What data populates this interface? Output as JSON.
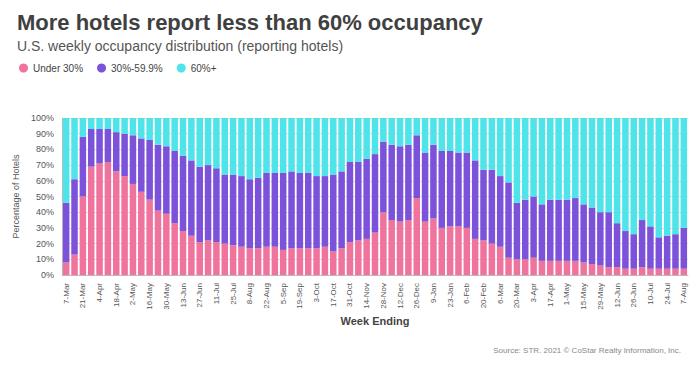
{
  "chart_data": {
    "type": "bar",
    "title": "More hotels report less than 60% occupancy",
    "subtitle": "U.S. weekly occupancy distribution (reporting hotels)",
    "x_label": "Week Ending",
    "y_label": "Percentage of Hotels",
    "annotations": [
      "Source: STR. 2021 © CoStar Realty Information, Inc."
    ],
    "categories": [
      "7-Mar",
      null,
      "21-Mar",
      null,
      "4-Apr",
      null,
      "18-Apr",
      null,
      "2-May",
      null,
      "16-May",
      null,
      "30-May",
      null,
      "13-Jun",
      null,
      "27-Jun",
      null,
      "11-Jul",
      null,
      "25-Jul",
      null,
      "8-Aug",
      null,
      "22-Aug",
      null,
      "5-Sep",
      null,
      "19-Sep",
      null,
      "3-Oct",
      null,
      "17-Oct",
      null,
      "31-Oct",
      null,
      "14-Nov",
      null,
      "28-Nov",
      null,
      "12-Dec",
      null,
      "26-Dec",
      null,
      "9-Jan",
      null,
      "23-Jan",
      null,
      "6-Feb",
      null,
      "20-Feb",
      null,
      "6-Mar",
      null,
      "20-Mar",
      null,
      "3-Apr",
      null,
      "17-Apr",
      null,
      "1-May",
      null,
      "15-May",
      null,
      "29-May",
      null,
      "12-Jun",
      null,
      "26-Jun",
      null,
      "10-Jul",
      null,
      "24-Jul",
      null,
      "7-Aug"
    ],
    "series": [
      {
        "name": "Under 30%",
        "color": "#f0739e",
        "values": [
          8,
          13,
          50,
          69,
          71,
          72,
          66,
          63,
          58,
          53,
          48,
          41,
          39,
          33,
          28,
          25,
          21,
          22,
          21,
          20,
          19,
          18,
          17,
          17,
          18,
          18,
          16,
          17,
          17,
          17,
          17,
          18,
          15,
          17,
          21,
          22,
          23,
          27,
          40,
          35,
          34,
          35,
          49,
          34,
          36,
          30,
          31,
          31,
          30,
          23,
          22,
          20,
          18,
          11,
          10,
          10,
          11,
          9,
          9,
          9,
          9,
          9,
          8,
          7,
          6,
          5,
          5,
          4,
          4,
          5,
          4,
          4,
          4,
          4,
          4
        ]
      },
      {
        "name": "30%-59.9%",
        "color": "#7b52d9",
        "values": [
          38,
          48,
          38,
          24,
          22,
          21,
          25,
          27,
          31,
          34,
          38,
          42,
          43,
          46,
          48,
          48,
          48,
          48,
          47,
          44,
          45,
          45,
          44,
          45,
          47,
          47,
          49,
          49,
          48,
          48,
          46,
          45,
          49,
          49,
          51,
          50,
          51,
          50,
          45,
          48,
          48,
          48,
          40,
          44,
          47,
          49,
          48,
          47,
          48,
          50,
          45,
          47,
          45,
          48,
          36,
          38,
          39,
          36,
          39,
          39,
          39,
          40,
          37,
          36,
          34,
          35,
          28,
          24,
          22,
          30,
          27,
          20,
          21,
          22,
          26
        ]
      },
      {
        "name": "60%+",
        "color": "#4fe3ea",
        "values": [
          54,
          39,
          12,
          7,
          7,
          7,
          9,
          10,
          11,
          13,
          14,
          17,
          18,
          21,
          24,
          27,
          31,
          30,
          32,
          36,
          36,
          37,
          39,
          38,
          35,
          35,
          35,
          34,
          35,
          35,
          37,
          37,
          36,
          34,
          28,
          28,
          26,
          23,
          15,
          17,
          18,
          17,
          11,
          22,
          17,
          21,
          21,
          22,
          22,
          27,
          33,
          33,
          37,
          41,
          54,
          52,
          50,
          55,
          52,
          52,
          52,
          51,
          55,
          57,
          60,
          60,
          67,
          72,
          74,
          65,
          69,
          76,
          75,
          74,
          70
        ]
      }
    ],
    "ylim": [
      0,
      100
    ],
    "yticks": [
      {
        "value": 0,
        "label": "0%"
      },
      {
        "value": 10,
        "label": "10%"
      },
      {
        "value": 20,
        "label": "20%"
      },
      {
        "value": 30,
        "label": "30%"
      },
      {
        "value": 40,
        "label": "40%"
      },
      {
        "value": 50,
        "label": "50%"
      },
      {
        "value": 60,
        "label": "60%"
      },
      {
        "value": 70,
        "label": "70%"
      },
      {
        "value": 80,
        "label": "80%"
      },
      {
        "value": 90,
        "label": "90%"
      },
      {
        "value": 100,
        "label": "100%"
      }
    ],
    "grid": true,
    "stacked": true,
    "legend": "top-left"
  }
}
